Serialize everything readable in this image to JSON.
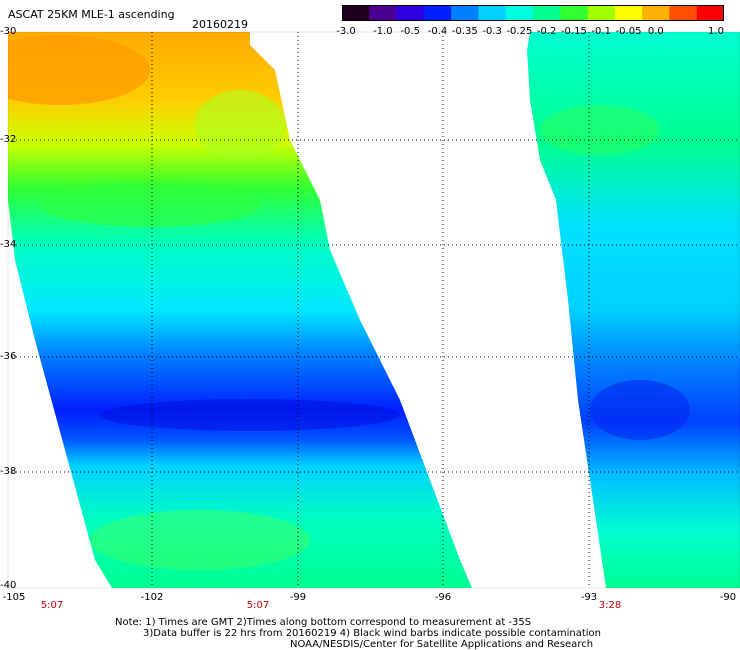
{
  "header": {
    "product": "ASCAT 25KM MLE-1 ascending",
    "date": "20160219"
  },
  "colorbar": {
    "labels": [
      "-3.0",
      "-1.0",
      "-0.5",
      "-0.4",
      "-0.35",
      "-0.3",
      "-0.25",
      "-0.2",
      "-0.15",
      "-0.1",
      "-0.05",
      "0.0",
      "1.0"
    ],
    "colors": [
      "#200020",
      "#4a0090",
      "#3000e0",
      "#0020ff",
      "#0080ff",
      "#00d0ff",
      "#00ffe0",
      "#00ff90",
      "#30ff30",
      "#a0ff00",
      "#ffff00",
      "#ffb000",
      "#ff5000",
      "#ff0000"
    ]
  },
  "axes": {
    "lat_labels": [
      "-30",
      "-32",
      "-34",
      "-36",
      "-38",
      "-40"
    ],
    "lon_labels": [
      "-105",
      "-102",
      "-99",
      "-96",
      "-93",
      "-90"
    ],
    "times": [
      "5:07",
      "5:07",
      "3:28"
    ]
  },
  "notes": {
    "line1": "Note: 1) Times are GMT 2)Times along bottom correspond to measurement at -35S",
    "line2": "3)Data buffer is 22 hrs from 20160219 4) Black wind barbs indicate possible contamination",
    "line3": "NOAA/NESDIS/Center for Satellite Applications and Research"
  }
}
